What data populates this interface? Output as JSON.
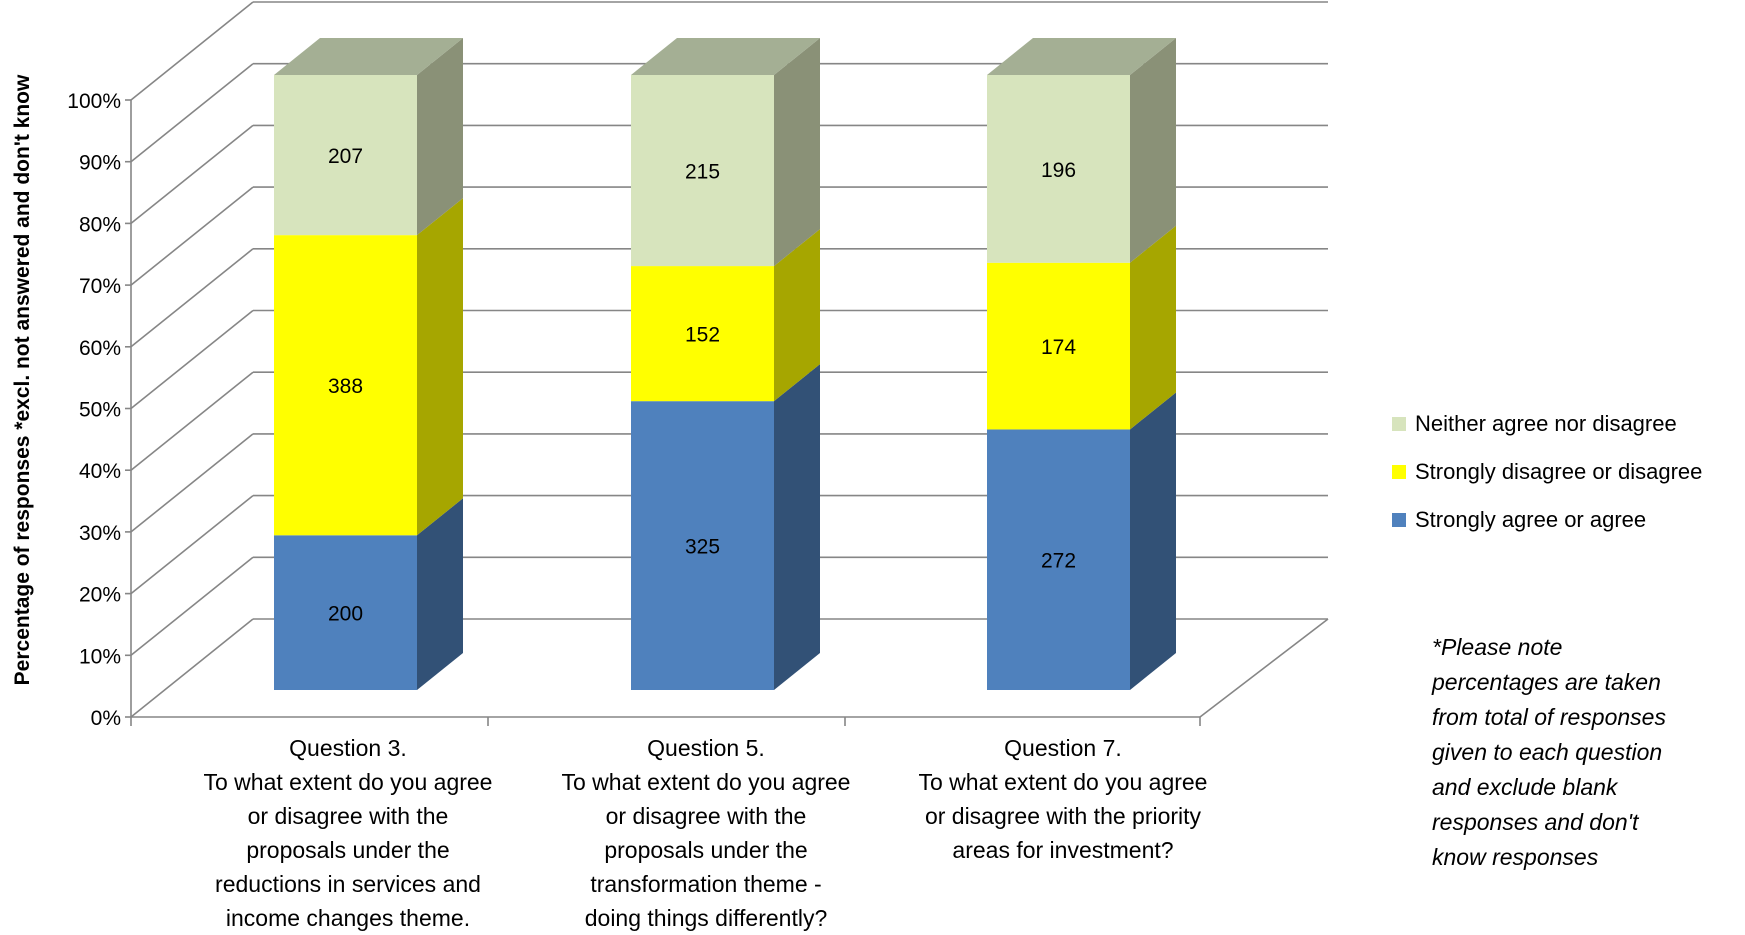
{
  "chart_data": {
    "type": "bar",
    "stacked": "percent",
    "three_d": true,
    "title": "",
    "xlabel": "",
    "ylabel": "Percentage of responses *excl. not answered and don't know",
    "ylim": [
      0,
      100
    ],
    "ytick_labels": [
      "0%",
      "10%",
      "20%",
      "30%",
      "40%",
      "50%",
      "60%",
      "70%",
      "80%",
      "90%",
      "100%"
    ],
    "grid": true,
    "legend_position": "right",
    "categories": [
      {
        "lines": [
          "Question 3.",
          "To what extent do you agree",
          "or disagree with the",
          "proposals under the",
          "reductions in services and",
          "income changes theme."
        ]
      },
      {
        "lines": [
          "Question 5.",
          "To what extent do you agree",
          "or disagree with the",
          "proposals under the",
          "transformation theme -",
          "doing things differently?"
        ]
      },
      {
        "lines": [
          "Question 7.",
          "To what extent do you agree",
          "or disagree with the priority",
          "areas for investment?"
        ]
      }
    ],
    "series": [
      {
        "name": "Strongly agree or agree",
        "color": "#4F81BD",
        "side_color": "#325176",
        "top_color": "#6A94C8",
        "values": [
          200,
          325,
          272
        ]
      },
      {
        "name": "Strongly disagree or disagree",
        "color": "#FFFF00",
        "side_color": "#A6A600",
        "top_color": "#D9D900",
        "values": [
          388,
          152,
          174
        ]
      },
      {
        "name": "Neither agree nor disagree",
        "color": "#D7E4BD",
        "side_color": "#8A9177",
        "top_color": "#A4AF94",
        "values": [
          207,
          215,
          196
        ]
      }
    ],
    "legend_order": [
      "Neither agree nor disagree",
      "Strongly disagree or disagree",
      "Strongly agree or agree"
    ],
    "note_lines": [
      "*Please note",
      "percentages are taken",
      "from total of responses",
      "given to each question",
      "and exclude blank",
      "responses and don't",
      "know responses"
    ]
  }
}
